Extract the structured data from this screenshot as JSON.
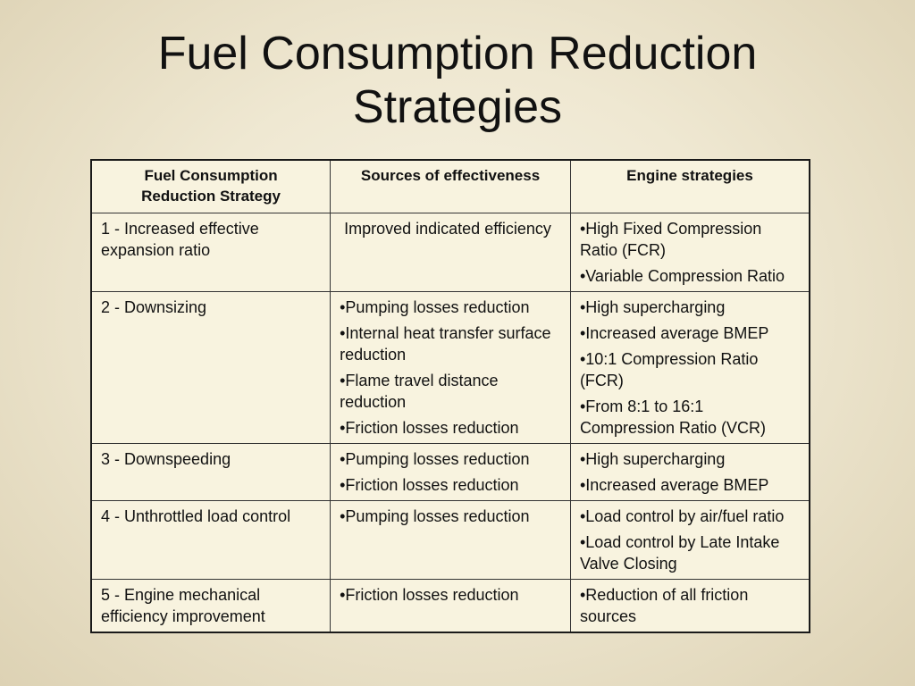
{
  "slide": {
    "title": "Fuel Consumption Reduction\nStrategies"
  },
  "table": {
    "headers": [
      "Fuel Consumption\nReduction Strategy",
      "Sources of effectiveness",
      "Engine strategies"
    ],
    "rows": [
      {
        "strategy": "1 - Increased effective expansion ratio",
        "sources": [
          " Improved indicated efficiency"
        ],
        "engine": [
          "•High Fixed Compression Ratio (FCR)",
          "•Variable Compression Ratio"
        ]
      },
      {
        "strategy": "2 - Downsizing",
        "sources": [
          "•Pumping losses reduction",
          "•Internal heat transfer surface reduction",
          "•Flame travel distance reduction",
          "•Friction losses reduction"
        ],
        "engine": [
          "•High supercharging",
          "•Increased average BMEP",
          "•10:1 Compression Ratio (FCR)",
          "•From 8:1 to 16:1 Compression Ratio (VCR)"
        ]
      },
      {
        "strategy": "3 - Downspeeding",
        "sources": [
          "•Pumping losses reduction",
          "•Friction losses reduction"
        ],
        "engine": [
          "•High supercharging",
          "•Increased average BMEP"
        ]
      },
      {
        "strategy": "4 - Unthrottled load control",
        "sources": [
          "•Pumping losses reduction"
        ],
        "engine": [
          "•Load control by air/fuel ratio",
          "•Load control by Late Intake Valve Closing"
        ]
      },
      {
        "strategy": "5 - Engine mechanical efficiency improvement",
        "sources": [
          "•Friction losses reduction"
        ],
        "engine": [
          "•Reduction of all friction sources"
        ]
      }
    ]
  }
}
